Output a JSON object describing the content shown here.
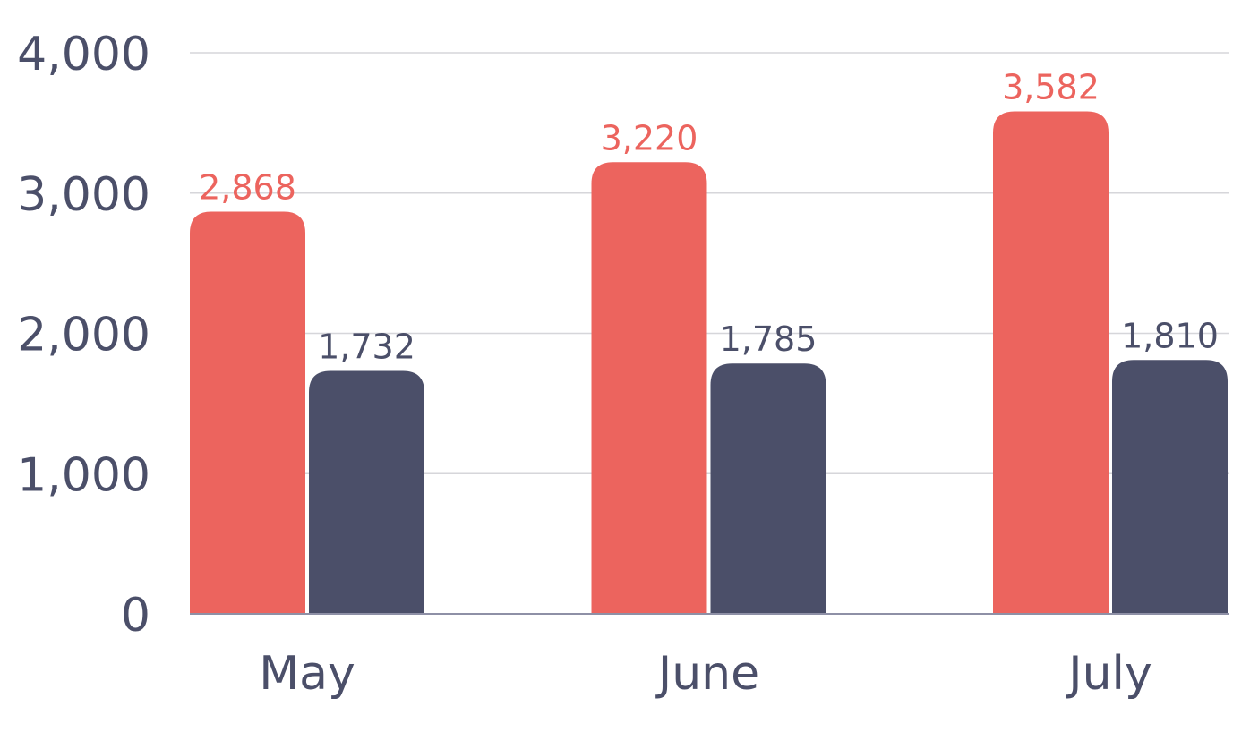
{
  "chart_data": {
    "type": "bar",
    "categories": [
      "May",
      "June",
      "July"
    ],
    "series": [
      {
        "values": [
          2868,
          3220,
          3582
        ],
        "color": "#EC645E"
      },
      {
        "values": [
          1732,
          1785,
          1810
        ],
        "color": "#4B4F69"
      }
    ],
    "data_labels": [
      [
        "2,868",
        "3,220",
        "3,582"
      ],
      [
        "1,732",
        "1,785",
        "1,810"
      ]
    ],
    "y_ticks": [
      0,
      1000,
      2000,
      3000,
      4000
    ],
    "y_tick_labels": [
      "0",
      "1,000",
      "2,000",
      "3,000",
      "4,000"
    ],
    "ylim": [
      0,
      4000
    ],
    "grid": true,
    "legend": "none",
    "title": "",
    "xlabel": "",
    "ylabel": ""
  },
  "colors": {
    "axis_text": "#4B4F69",
    "grid": "#D6D6DA",
    "baseline": "#8E90A6"
  }
}
